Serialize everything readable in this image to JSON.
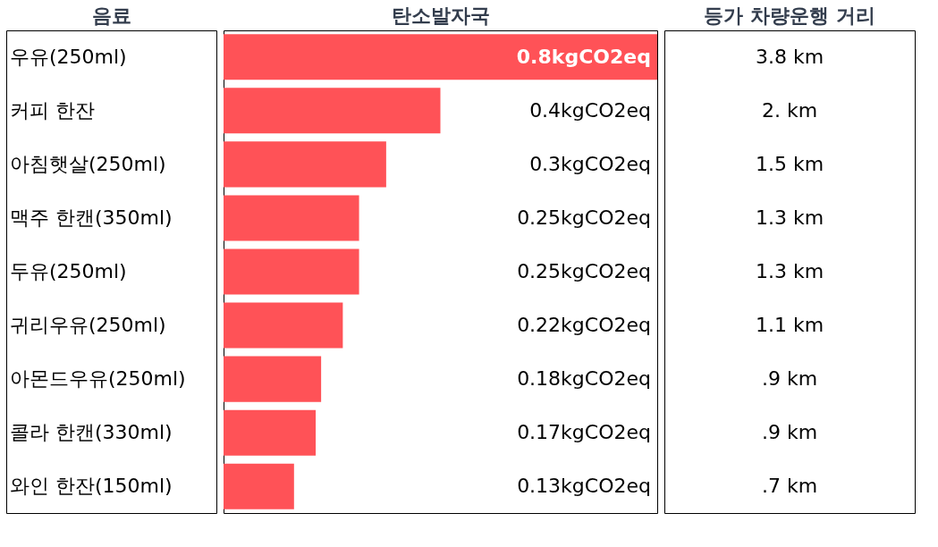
{
  "chart_data": {
    "type": "bar",
    "orientation": "horizontal",
    "ylabel": "음료",
    "xlabel": "탄소발자국",
    "categories": [
      "우유(250ml)",
      "커피 한잔",
      "아침햇살(250ml)",
      "맥주 한캔(350ml)",
      "두유(250ml)",
      "귀리우유(250ml)",
      "아몬드우유(250ml)",
      "콜라 한캔(330ml)",
      "와인 한잔(150ml)"
    ],
    "values": [
      0.8,
      0.4,
      0.3,
      0.25,
      0.25,
      0.22,
      0.18,
      0.17,
      0.13
    ],
    "value_labels": [
      "0.8kgCO2eq",
      "0.4kgCO2eq",
      "0.3kgCO2eq",
      "0.25kgCO2eq",
      "0.25kgCO2eq",
      "0.22kgCO2eq",
      "0.18kgCO2eq",
      "0.17kgCO2eq",
      "0.13kgCO2eq"
    ],
    "color": "#ff5257",
    "annotations": [
      "등가 차량운행 거리",
      "3.8 km",
      "2. km",
      "1.5 km",
      "1.3 km",
      "1.3 km",
      "1.1 km",
      ".9 km",
      ".9 km",
      ".7 km"
    ]
  }
}
